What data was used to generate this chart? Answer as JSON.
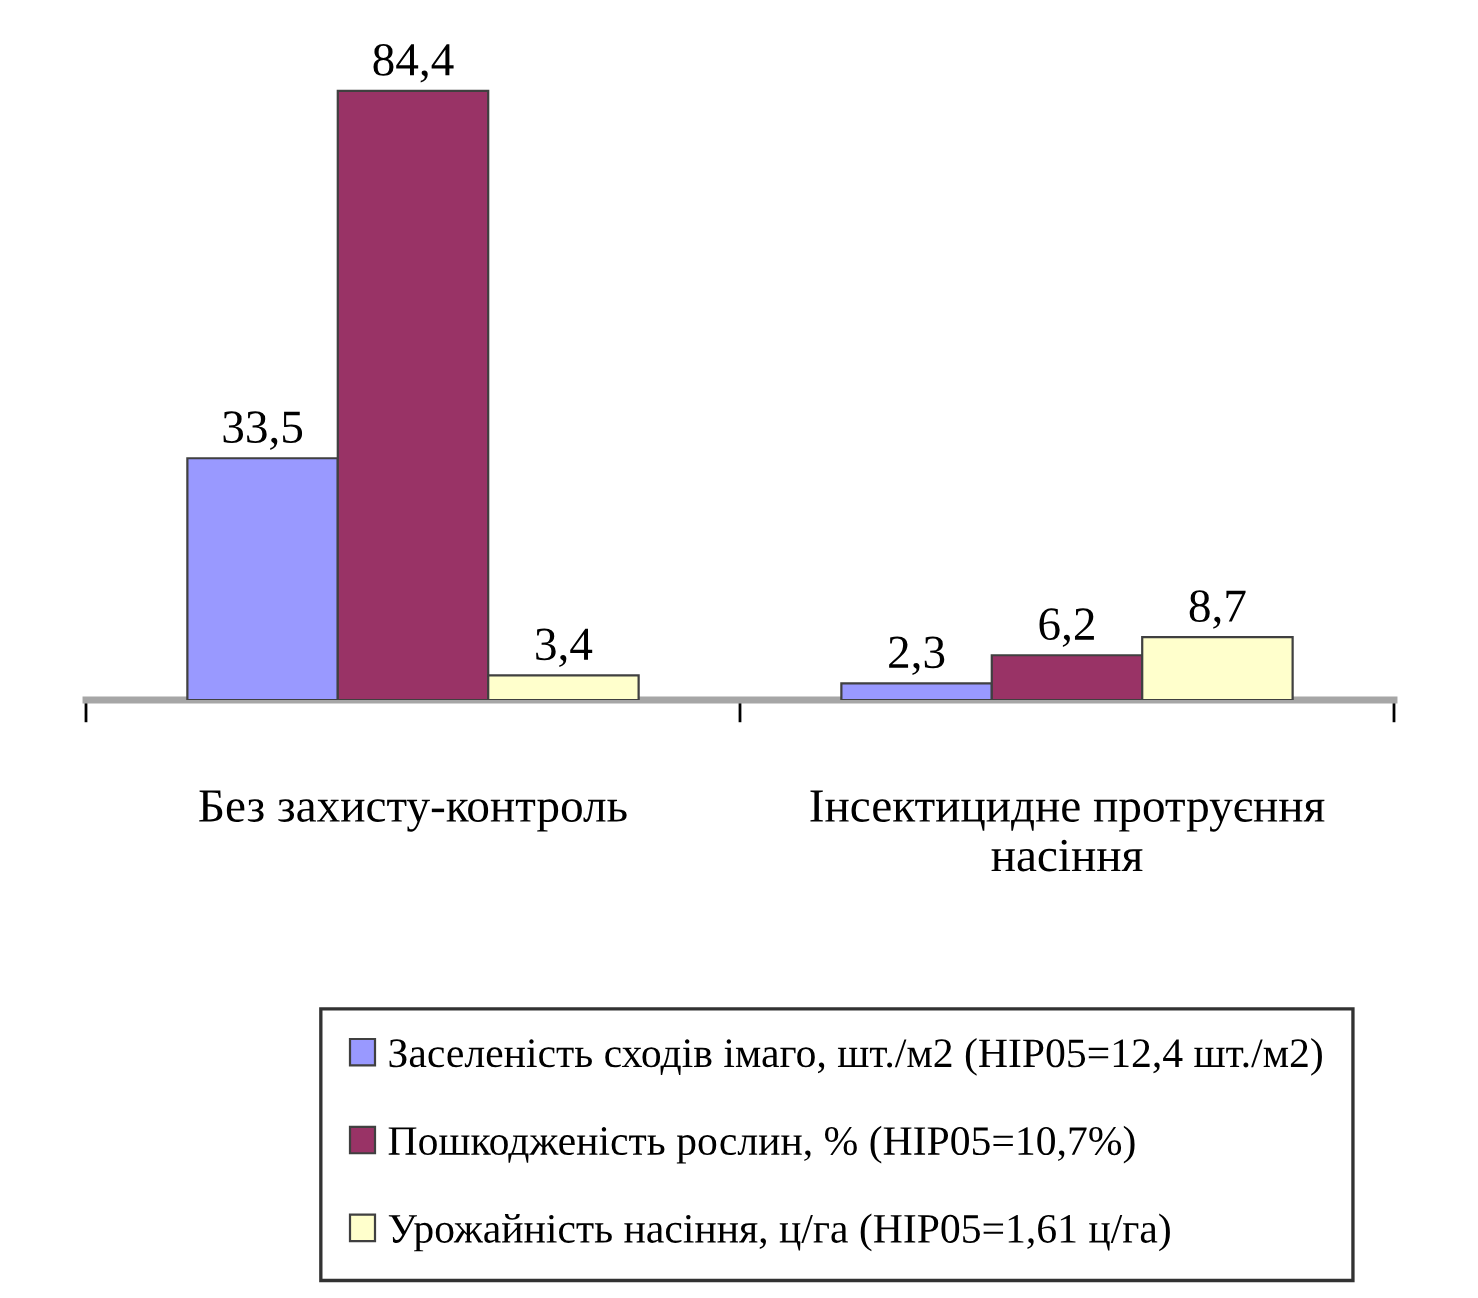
{
  "chart_data": {
    "type": "bar",
    "categories": [
      "Без захисту-контроль",
      "Інсектицидне протруєння\nнасіння"
    ],
    "series": [
      {
        "name": "Заселеність сходів імаго, шт./м2 (НІР05=12,4 шт./м2)",
        "color": "#9999ff",
        "values": [
          33.5,
          2.3
        ],
        "value_labels": [
          "33,5",
          "2,3"
        ]
      },
      {
        "name": "Пошкодженість рослин, % (НІР05=10,7%)",
        "color": "#993366",
        "values": [
          84.4,
          6.2
        ],
        "value_labels": [
          "84,4",
          "6,2"
        ]
      },
      {
        "name": "Урожайність насіння, ц/га (НІР05=1,61 ц/га)",
        "color": "#ffffcc",
        "values": [
          3.4,
          8.7
        ],
        "value_labels": [
          "3,4",
          "8,7"
        ]
      }
    ],
    "legend": "bottom",
    "tick_labels": "x"
  }
}
